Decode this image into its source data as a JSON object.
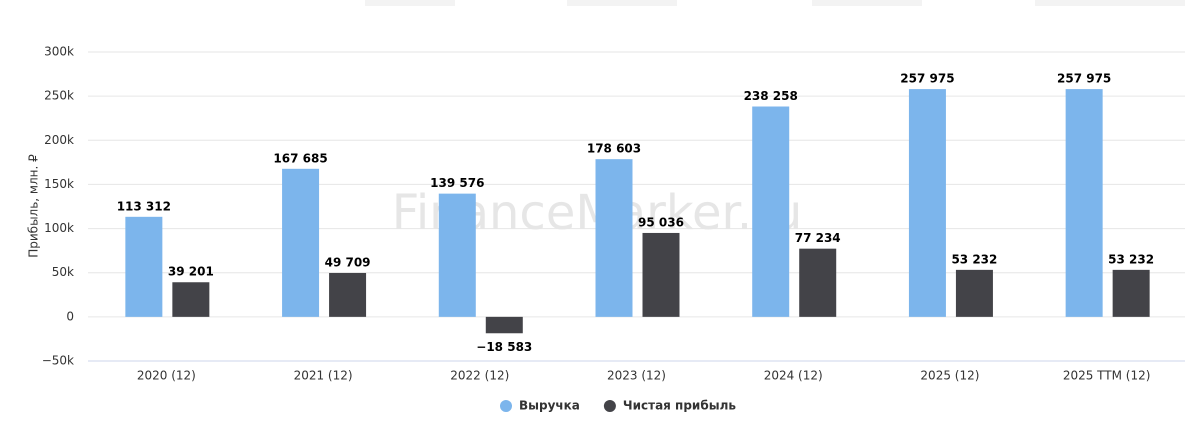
{
  "chart_data": {
    "type": "bar",
    "y_label": "Прибыль, млн. ₽",
    "watermark": "FinanceMarker.ru",
    "categories": [
      "2020 (12)",
      "2021 (12)",
      "2022 (12)",
      "2023 (12)",
      "2024 (12)",
      "2025 (12)",
      "2025 TTM (12)"
    ],
    "series": [
      {
        "name": "Выручка",
        "color": "#7cb5ec",
        "values": [
          113312,
          167685,
          139576,
          178603,
          238258,
          257975,
          257975
        ],
        "value_labels": [
          "113 312",
          "167 685",
          "139 576",
          "178 603",
          "238 258",
          "257 975",
          "257 975"
        ]
      },
      {
        "name": "Чистая прибыль",
        "color": "#434348",
        "values": [
          39201,
          49709,
          -18583,
          95036,
          77234,
          53232,
          53232
        ],
        "value_labels": [
          "39 201",
          "49 709",
          "−18 583",
          "95 036",
          "77 234",
          "53 232",
          "53 232"
        ]
      }
    ],
    "ylim": [
      -50000,
      300000
    ],
    "yticks": [
      {
        "value": -50000,
        "label": "−50k"
      },
      0,
      {
        "value": 50000,
        "label": "50k"
      },
      {
        "value": 100000,
        "label": "100k"
      },
      {
        "value": 150000,
        "label": "150k"
      },
      {
        "value": 200000,
        "label": "200k"
      },
      {
        "value": 250000,
        "label": "250k"
      },
      {
        "value": 300000,
        "label": "300k"
      }
    ],
    "grid": true,
    "legend": "bottom"
  }
}
